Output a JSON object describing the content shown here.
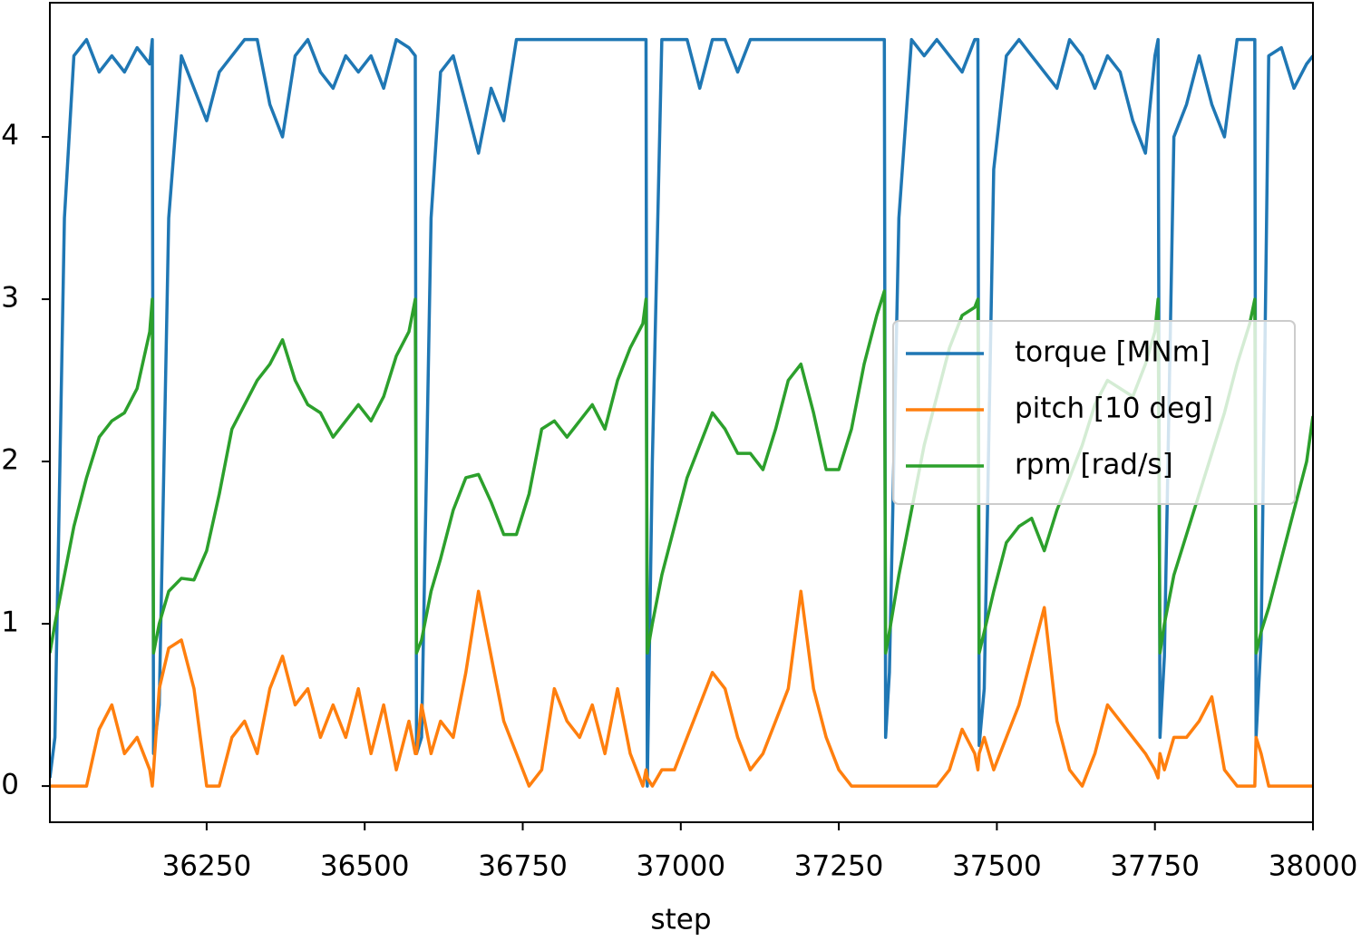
{
  "chart_data": {
    "type": "line",
    "xlabel": "step",
    "xlim": [
      36002,
      38000
    ],
    "ylim": [
      -0.223,
      4.827
    ],
    "xticks": [
      36250,
      36500,
      36750,
      37000,
      37250,
      37500,
      37750,
      38000
    ],
    "yticks": [
      0,
      1,
      2,
      3,
      4
    ],
    "legend": "center right",
    "x": [
      36002,
      36010,
      36025,
      36040,
      36060,
      36080,
      36100,
      36120,
      36140,
      36160,
      36164,
      36166,
      36175,
      36190,
      36210,
      36230,
      36250,
      36270,
      36290,
      36310,
      36330,
      36350,
      36370,
      36390,
      36410,
      36430,
      36450,
      36470,
      36490,
      36510,
      36530,
      36550,
      36570,
      36580,
      36582,
      36590,
      36605,
      36620,
      36640,
      36660,
      36680,
      36700,
      36720,
      36740,
      36760,
      36780,
      36800,
      36820,
      36840,
      36860,
      36880,
      36900,
      36920,
      36940,
      36945,
      36947,
      36955,
      36970,
      36990,
      37010,
      37030,
      37050,
      37070,
      37090,
      37110,
      37130,
      37150,
      37170,
      37190,
      37210,
      37230,
      37250,
      37270,
      37290,
      37310,
      37322,
      37324,
      37330,
      37345,
      37365,
      37385,
      37405,
      37425,
      37445,
      37465,
      37470,
      37472,
      37480,
      37495,
      37515,
      37535,
      37555,
      37575,
      37595,
      37615,
      37635,
      37655,
      37675,
      37695,
      37715,
      37735,
      37750,
      37755,
      37758,
      37765,
      37780,
      37800,
      37820,
      37840,
      37860,
      37880,
      37900,
      37908,
      37910,
      37918,
      37930,
      37950,
      37970,
      37990,
      38000
    ],
    "series": [
      {
        "name": "torque [MNm]",
        "color": "#1f77b4",
        "values": [
          0.05,
          0.3,
          3.5,
          4.5,
          4.6,
          4.4,
          4.5,
          4.4,
          4.55,
          4.45,
          4.6,
          0.2,
          0.5,
          3.5,
          4.5,
          4.3,
          4.1,
          4.4,
          4.5,
          4.6,
          4.6,
          4.2,
          4.0,
          4.5,
          4.6,
          4.4,
          4.3,
          4.5,
          4.4,
          4.5,
          4.3,
          4.6,
          4.55,
          4.5,
          0.2,
          0.3,
          3.5,
          4.4,
          4.5,
          4.2,
          3.9,
          4.3,
          4.1,
          4.6,
          4.6,
          4.6,
          4.6,
          4.6,
          4.6,
          4.6,
          4.6,
          4.6,
          4.6,
          4.6,
          4.6,
          0.0,
          2.0,
          4.6,
          4.6,
          4.6,
          4.3,
          4.6,
          4.6,
          4.4,
          4.6,
          4.6,
          4.6,
          4.6,
          4.6,
          4.6,
          4.6,
          4.6,
          4.6,
          4.6,
          4.6,
          4.6,
          0.3,
          0.7,
          3.5,
          4.6,
          4.5,
          4.6,
          4.5,
          4.4,
          4.6,
          4.6,
          0.25,
          0.6,
          3.8,
          4.5,
          4.6,
          4.5,
          4.4,
          4.3,
          4.6,
          4.5,
          4.3,
          4.5,
          4.4,
          4.1,
          3.9,
          4.5,
          4.6,
          0.3,
          0.8,
          4.0,
          4.2,
          4.5,
          4.2,
          4.0,
          4.6,
          4.6,
          4.6,
          0.3,
          0.9,
          4.5,
          4.55,
          4.3,
          4.45,
          4.5
        ]
      },
      {
        "name": "pitch [10 deg]",
        "color": "#ff7f0e",
        "values": [
          0,
          0,
          0,
          0,
          0,
          0.35,
          0.5,
          0.2,
          0.3,
          0.1,
          0,
          0.1,
          0.6,
          0.85,
          0.9,
          0.6,
          0,
          0,
          0.3,
          0.4,
          0.2,
          0.6,
          0.8,
          0.5,
          0.6,
          0.3,
          0.5,
          0.3,
          0.6,
          0.2,
          0.5,
          0.1,
          0.4,
          0.2,
          0.2,
          0.5,
          0.2,
          0.4,
          0.3,
          0.7,
          1.2,
          0.8,
          0.4,
          0.2,
          0,
          0.1,
          0.6,
          0.4,
          0.3,
          0.5,
          0.2,
          0.6,
          0.2,
          0,
          0.1,
          0.05,
          0,
          0.1,
          0.1,
          0.3,
          0.5,
          0.7,
          0.6,
          0.3,
          0.1,
          0.2,
          0.4,
          0.6,
          1.2,
          0.6,
          0.3,
          0.1,
          0,
          0,
          0,
          0,
          0,
          0,
          0,
          0,
          0,
          0,
          0.1,
          0.35,
          0.2,
          0.1,
          0.2,
          0.3,
          0.1,
          0.3,
          0.5,
          0.8,
          1.1,
          0.4,
          0.1,
          0,
          0.2,
          0.5,
          0.4,
          0.3,
          0.2,
          0.1,
          0.05,
          0.2,
          0.1,
          0.3,
          0.3,
          0.4,
          0.55,
          0.1,
          0,
          0,
          0,
          0.3,
          0.2,
          0,
          0,
          0,
          0,
          0
        ]
      },
      {
        "name": "rpm [rad/s]",
        "color": "#2ca02c",
        "values": [
          0.82,
          1.0,
          1.3,
          1.6,
          1.9,
          2.15,
          2.25,
          2.3,
          2.45,
          2.8,
          3.0,
          0.82,
          1.0,
          1.2,
          1.28,
          1.27,
          1.45,
          1.8,
          2.2,
          2.35,
          2.5,
          2.6,
          2.75,
          2.5,
          2.35,
          2.3,
          2.15,
          2.25,
          2.35,
          2.25,
          2.4,
          2.65,
          2.8,
          3.0,
          0.82,
          0.9,
          1.2,
          1.4,
          1.7,
          1.9,
          1.92,
          1.75,
          1.55,
          1.55,
          1.8,
          2.2,
          2.25,
          2.15,
          2.25,
          2.35,
          2.2,
          2.5,
          2.7,
          2.85,
          3.0,
          0.82,
          1.0,
          1.3,
          1.6,
          1.9,
          2.1,
          2.3,
          2.2,
          2.05,
          2.05,
          1.95,
          2.2,
          2.5,
          2.6,
          2.3,
          1.95,
          1.95,
          2.2,
          2.6,
          2.9,
          3.05,
          0.82,
          0.95,
          1.3,
          1.7,
          2.1,
          2.4,
          2.7,
          2.9,
          2.95,
          3.0,
          0.82,
          0.95,
          1.2,
          1.5,
          1.6,
          1.65,
          1.45,
          1.7,
          1.9,
          2.1,
          2.35,
          2.5,
          2.45,
          2.4,
          2.6,
          2.8,
          3.0,
          0.82,
          1.0,
          1.3,
          1.55,
          1.8,
          2.05,
          2.3,
          2.6,
          2.85,
          3.0,
          0.82,
          0.95,
          1.1,
          1.4,
          1.7,
          2.0,
          2.28
        ]
      }
    ]
  }
}
